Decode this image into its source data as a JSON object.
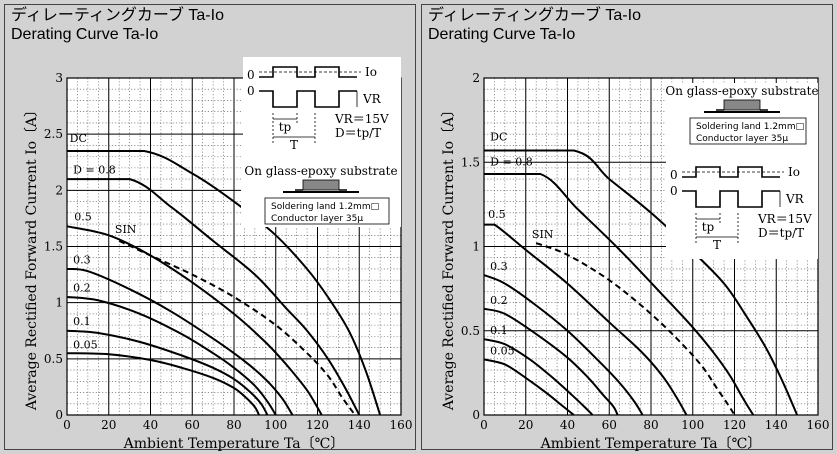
{
  "panels": [
    {
      "title_jp": "ディレーティングカーブ Ta-Io",
      "title_en": "Derating Curve Ta-Io"
    },
    {
      "title_jp": "ディレーティングカーブ Ta-Io",
      "title_en": "Derating Curve Ta-Io"
    }
  ],
  "chart_data": [
    {
      "type": "line",
      "xlabel": "Ambient Temperature  Ta〔℃〕",
      "ylabel": "Average Rectified Forward Current  Io〔A〕",
      "xlim": [
        0,
        160
      ],
      "ylim": [
        0,
        3
      ],
      "xticks": [
        0,
        20,
        40,
        60,
        80,
        100,
        120,
        140,
        160
      ],
      "yticks": [
        0,
        0.5,
        1,
        1.5,
        2,
        2.5,
        3
      ],
      "ytick_labels": [
        "0",
        "0.5",
        "1",
        "1.5",
        "2",
        "2.5",
        "3"
      ],
      "grid": true,
      "series": [
        {
          "name": "DC",
          "dashed": false,
          "x": [
            0,
            37,
            60,
            80,
            100,
            115,
            125,
            135,
            143,
            150
          ],
          "y": [
            2.35,
            2.35,
            2.15,
            1.9,
            1.6,
            1.3,
            1.05,
            0.75,
            0.4,
            0
          ]
        },
        {
          "name": "D = 0.8",
          "dashed": false,
          "x": [
            0,
            30,
            50,
            70,
            90,
            105,
            115,
            125,
            133,
            140
          ],
          "y": [
            2.1,
            2.1,
            1.85,
            1.55,
            1.25,
            0.95,
            0.75,
            0.5,
            0.25,
            0
          ]
        },
        {
          "name": "0.5",
          "dashed": false,
          "x": [
            0,
            20,
            40,
            60,
            80,
            95,
            105,
            115,
            122
          ],
          "y": [
            1.68,
            1.6,
            1.42,
            1.18,
            0.9,
            0.65,
            0.45,
            0.22,
            0
          ]
        },
        {
          "name": "SIN",
          "dashed": true,
          "x": [
            25,
            40,
            60,
            80,
            100,
            115,
            125,
            132,
            138
          ],
          "y": [
            1.55,
            1.42,
            1.25,
            1.05,
            0.8,
            0.55,
            0.35,
            0.15,
            0
          ]
        },
        {
          "name": "0.3",
          "dashed": false,
          "x": [
            0,
            10,
            30,
            50,
            70,
            85,
            95,
            103,
            108
          ],
          "y": [
            1.3,
            1.28,
            1.12,
            0.92,
            0.68,
            0.48,
            0.32,
            0.15,
            0
          ]
        },
        {
          "name": "0.2",
          "dashed": false,
          "x": [
            0,
            15,
            35,
            55,
            70,
            80,
            90,
            96,
            100
          ],
          "y": [
            1.05,
            1.02,
            0.9,
            0.72,
            0.55,
            0.42,
            0.26,
            0.12,
            0
          ]
        },
        {
          "name": "0.1",
          "dashed": false,
          "x": [
            0,
            15,
            35,
            55,
            70,
            80,
            88,
            93,
            96
          ],
          "y": [
            0.75,
            0.73,
            0.65,
            0.53,
            0.42,
            0.32,
            0.2,
            0.1,
            0
          ]
        },
        {
          "name": "0.05",
          "dashed": false,
          "x": [
            0,
            20,
            40,
            55,
            70,
            80,
            86,
            90,
            92
          ],
          "y": [
            0.55,
            0.54,
            0.49,
            0.42,
            0.33,
            0.24,
            0.15,
            0.07,
            0
          ]
        }
      ],
      "annotations": {
        "io_label": "Io",
        "vr_label": "VR",
        "zero_label": "0",
        "tp_label": "tp",
        "t_label": "T",
        "vr_value": "VR＝15V",
        "duty": "D＝tp/T",
        "substrate": "On glass-epoxy substrate",
        "land": "Soldering land 1.2mm□",
        "conductor": "Conductor layer 35μ"
      }
    },
    {
      "type": "line",
      "xlabel": "Ambient Temperature  Ta〔℃〕",
      "ylabel": "Average Rectified Forward Current  Io〔A〕",
      "xlim": [
        0,
        160
      ],
      "ylim": [
        0,
        2
      ],
      "xticks": [
        0,
        20,
        40,
        60,
        80,
        100,
        120,
        140,
        160
      ],
      "yticks": [
        0,
        0.5,
        1,
        1.5,
        2
      ],
      "ytick_labels": [
        "0",
        "0.5",
        "1",
        "1.5",
        "2"
      ],
      "grid": true,
      "series": [
        {
          "name": "DC",
          "dashed": false,
          "x": [
            0,
            43,
            60,
            80,
            100,
            115,
            125,
            135,
            143,
            150
          ],
          "y": [
            1.57,
            1.57,
            1.4,
            1.2,
            0.97,
            0.78,
            0.6,
            0.4,
            0.2,
            0
          ]
        },
        {
          "name": "D = 0.8",
          "dashed": false,
          "x": [
            0,
            27,
            45,
            65,
            85,
            100,
            110,
            118,
            124,
            129
          ],
          "y": [
            1.43,
            1.43,
            1.22,
            0.98,
            0.72,
            0.52,
            0.37,
            0.23,
            0.1,
            0
          ]
        },
        {
          "name": "0.5",
          "dashed": false,
          "x": [
            0,
            5,
            20,
            40,
            60,
            75,
            85,
            92,
            97
          ],
          "y": [
            1.13,
            1.13,
            0.98,
            0.78,
            0.55,
            0.38,
            0.24,
            0.11,
            0
          ]
        },
        {
          "name": "SIN",
          "dashed": true,
          "x": [
            25,
            40,
            60,
            80,
            95,
            105,
            112,
            117,
            120
          ],
          "y": [
            1.02,
            0.95,
            0.8,
            0.6,
            0.42,
            0.28,
            0.15,
            0.06,
            0
          ]
        },
        {
          "name": "0.3",
          "dashed": false,
          "x": [
            0,
            10,
            25,
            40,
            55,
            65,
            72,
            76
          ],
          "y": [
            0.83,
            0.78,
            0.65,
            0.5,
            0.32,
            0.19,
            0.08,
            0
          ]
        },
        {
          "name": "0.2",
          "dashed": false,
          "x": [
            0,
            10,
            25,
            40,
            50,
            57,
            62,
            64
          ],
          "y": [
            0.63,
            0.6,
            0.48,
            0.34,
            0.22,
            0.12,
            0.05,
            0
          ]
        },
        {
          "name": "0.1",
          "dashed": false,
          "x": [
            0,
            10,
            22,
            33,
            42,
            48,
            52
          ],
          "y": [
            0.45,
            0.42,
            0.33,
            0.22,
            0.12,
            0.05,
            0
          ]
        },
        {
          "name": "0.05",
          "dashed": false,
          "x": [
            0,
            10,
            20,
            30,
            37,
            41,
            43
          ],
          "y": [
            0.33,
            0.3,
            0.22,
            0.13,
            0.06,
            0.02,
            0
          ]
        }
      ],
      "annotations": {
        "io_label": "Io",
        "vr_label": "VR",
        "zero_label": "0",
        "tp_label": "tp",
        "t_label": "T",
        "vr_value": "VR＝15V",
        "duty": "D＝tp/T",
        "substrate": "On glass-epoxy substrate",
        "land": "Soldering land 1.2mm□",
        "conductor": "Conductor layer 35μ"
      }
    }
  ]
}
